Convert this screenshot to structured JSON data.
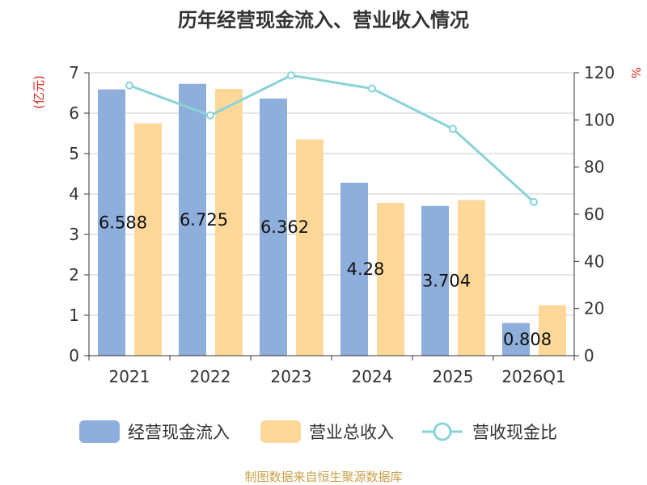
{
  "chart_data": {
    "type": "bar",
    "title": "历年经营现金流入、营业收入情况",
    "categories": [
      "2021",
      "2022",
      "2023",
      "2024",
      "2025",
      "2026Q1"
    ],
    "series": [
      {
        "name": "经营现金流入",
        "type": "bar",
        "axis": "left",
        "color": "#8eaedb",
        "values": [
          6.588,
          6.725,
          6.362,
          4.28,
          3.704,
          0.808
        ],
        "labels_shown": true
      },
      {
        "name": "营业总收入",
        "type": "bar",
        "axis": "left",
        "color": "#fdd899",
        "values": [
          5.75,
          6.6,
          5.35,
          3.78,
          3.85,
          1.25
        ],
        "labels_shown": false
      },
      {
        "name": "营收现金比",
        "type": "line",
        "axis": "right",
        "color": "#87d3d8",
        "values": [
          114.6,
          101.9,
          118.9,
          113.3,
          96.2,
          65.2
        ],
        "labels_shown": false
      }
    ],
    "y_left": {
      "unit": "(亿元)",
      "min": 0,
      "max": 7,
      "ticks": [
        0,
        1,
        2,
        3,
        4,
        5,
        6,
        7
      ]
    },
    "y_right": {
      "unit": "%",
      "min": 0,
      "max": 120,
      "ticks": [
        0,
        20,
        40,
        60,
        80,
        100,
        120
      ]
    },
    "grid": true,
    "legend_position": "bottom"
  },
  "source_text": "制图数据来自恒生聚源数据库"
}
